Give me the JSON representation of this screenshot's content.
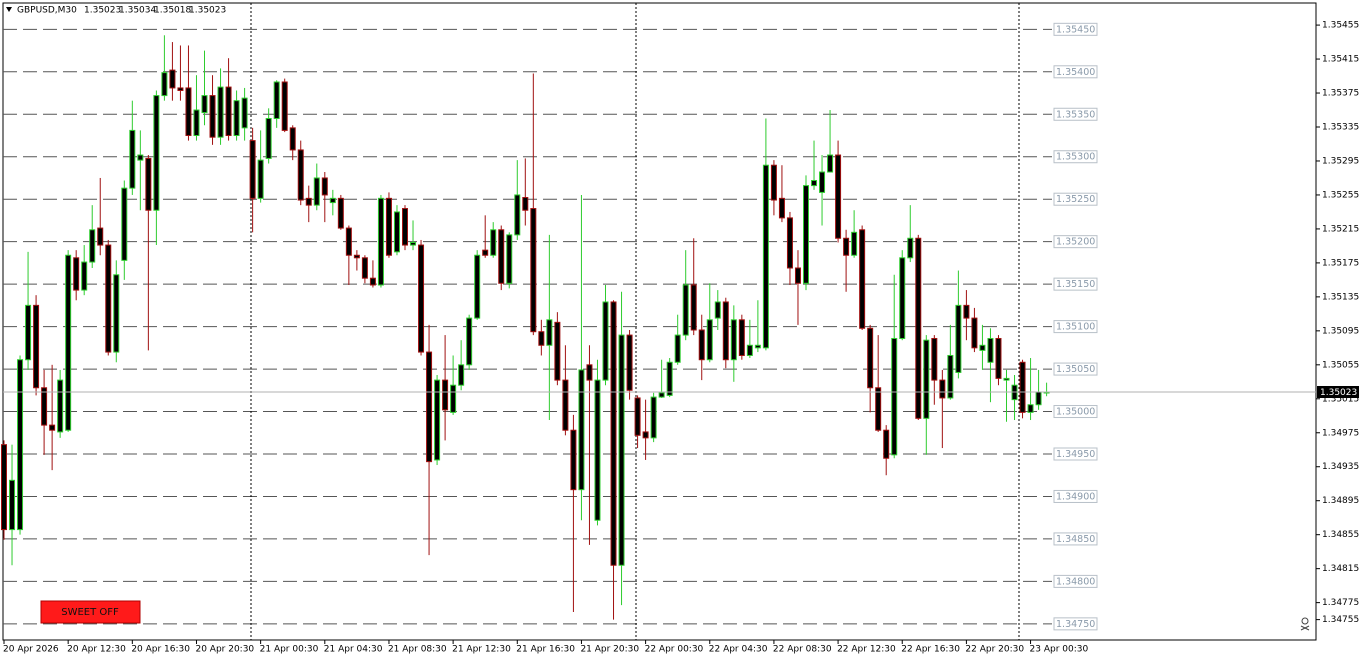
{
  "chart_data": {
    "type": "candlestick",
    "symbol": "GBPUSD,M30",
    "ylim": [
      1.34731,
      1.35481
    ],
    "yticks": [
      1.35455,
      1.35415,
      1.35375,
      1.35335,
      1.35295,
      1.35255,
      1.35215,
      1.35175,
      1.35135,
      1.35095,
      1.35055,
      1.35015,
      1.34975,
      1.34935,
      1.34895,
      1.34855,
      1.34815,
      1.34775,
      1.34755
    ],
    "levels": [
      {
        "value": 1.3545,
        "label": "1.35450"
      },
      {
        "value": 1.354,
        "label": "1.35400"
      },
      {
        "value": 1.3535,
        "label": "1.35350"
      },
      {
        "value": 1.353,
        "label": "1.35300"
      },
      {
        "value": 1.3525,
        "label": "1.35250"
      },
      {
        "value": 1.352,
        "label": "1.35200"
      },
      {
        "value": 1.3515,
        "label": "1.35150"
      },
      {
        "value": 1.351,
        "label": "1.35100"
      },
      {
        "value": 1.3505,
        "label": "1.35050"
      },
      {
        "value": 1.35,
        "label": "1.35000"
      },
      {
        "value": 1.3495,
        "label": "1.34950"
      },
      {
        "value": 1.349,
        "label": "1.34900"
      },
      {
        "value": 1.3485,
        "label": "1.34850"
      },
      {
        "value": 1.348,
        "label": "1.34800"
      },
      {
        "value": 1.3475,
        "label": "1.34750"
      }
    ],
    "bull_color": "#2ecc2e",
    "bear_color": "#a01010",
    "body_color": "#000000",
    "level_color": "#555555",
    "categories": [
      "20 Apr 2026",
      null,
      null,
      null,
      null,
      null,
      null,
      null,
      "20 Apr 12:30",
      null,
      null,
      null,
      null,
      null,
      null,
      null,
      "20 Apr 16:30",
      null,
      null,
      null,
      null,
      null,
      null,
      null,
      "20 Apr 20:30",
      null,
      null,
      null,
      null,
      null,
      null,
      null,
      "21 Apr 00:30",
      null,
      null,
      null,
      null,
      null,
      null,
      null,
      "21 Apr 04:30",
      null,
      null,
      null,
      null,
      null,
      null,
      null,
      "21 Apr 08:30",
      null,
      null,
      null,
      null,
      null,
      null,
      null,
      "21 Apr 12:30",
      null,
      null,
      null,
      null,
      null,
      null,
      null,
      "21 Apr 16:30",
      null,
      null,
      null,
      null,
      null,
      null,
      null,
      "21 Apr 20:30",
      null,
      null,
      null,
      null,
      null,
      null,
      null,
      "22 Apr 00:30",
      null,
      null,
      null,
      null,
      null,
      null,
      null,
      "22 Apr 04:30",
      null,
      null,
      null,
      null,
      null,
      null,
      null,
      "22 Apr 08:30",
      null,
      null,
      null,
      null,
      null,
      null,
      null,
      "22 Apr 12:30",
      null,
      null,
      null,
      null,
      null,
      null,
      null,
      "22 Apr 16:30",
      null,
      null,
      null,
      null,
      null,
      null,
      null,
      "22 Apr 20:30",
      null,
      null,
      null,
      null,
      null,
      null,
      null,
      "23 Apr 00:30",
      null,
      null
    ],
    "open": [
      1.34961,
      1.34861,
      1.34861,
      1.35061,
      1.35125,
      1.35028,
      1.34984,
      1.34976,
      1.34978,
      1.35181,
      1.35143,
      1.35176,
      1.35216,
      1.35196,
      1.3507,
      1.35178,
      1.35263,
      1.35296,
      1.35298,
      1.35237,
      1.35372,
      1.35402,
      1.35381,
      1.35381,
      1.35325,
      1.35352,
      1.35372,
      1.35323,
      1.35382,
      1.35325,
      1.35334,
      1.35319,
      1.35251,
      1.35298,
      1.35345,
      1.35388,
      1.35334,
      1.35308,
      1.35251,
      1.35243,
      1.35275,
      1.35246,
      1.35251,
      1.35216,
      1.35184,
      1.35181,
      1.35157,
      1.35149,
      1.35251,
      1.35188,
      1.35239,
      1.35196,
      1.35196,
      1.3507,
      1.34943,
      1.35037,
      1.34999,
      1.35031,
      1.35055,
      1.3511,
      1.3519,
      1.35184,
      1.35214,
      1.35151,
      1.35208,
      1.35252,
      1.35239,
      1.35094,
      1.35078,
      1.35105,
      1.35037,
      1.34978,
      1.34908,
      1.35055,
      1.34872,
      1.35037,
      1.35129,
      1.34819,
      1.3509,
      1.35016,
      1.34976,
      1.34969,
      1.35017,
      1.35019,
      1.35058,
      1.3509,
      1.35149,
      1.35096,
      1.35061,
      1.3511,
      1.35129,
      1.35061,
      1.35108,
      1.35066,
      1.35075,
      1.35075,
      1.3529,
      1.35251,
      1.35228,
      1.35169,
      1.35151,
      1.35266,
      1.35258,
      1.35282,
      1.35302,
      1.35204,
      1.35184,
      1.35214,
      1.35098,
      1.35028,
      1.34978,
      1.34949,
      1.35086,
      1.35181,
      1.35204,
      1.34992,
      1.35086,
      1.35037,
      1.35016,
      1.35046,
      1.35125,
      1.3511,
      1.35072,
      1.35058,
      1.35086,
      1.35037,
      1.35014,
      1.35058,
      1.34999,
      1.35008,
      1.35023
    ],
    "high": [
      1.34966,
      1.34961,
      1.35066,
      1.35188,
      1.35137,
      1.35049,
      1.35055,
      1.35049,
      1.3519,
      1.3519,
      1.35196,
      1.35243,
      1.35275,
      1.35202,
      1.35178,
      1.35272,
      1.35366,
      1.35331,
      1.35302,
      1.35378,
      1.35443,
      1.35435,
      1.35431,
      1.35431,
      1.35396,
      1.35425,
      1.35396,
      1.35404,
      1.35416,
      1.35378,
      1.35381,
      1.35334,
      1.35331,
      1.35357,
      1.3539,
      1.35392,
      1.35337,
      1.35319,
      1.35266,
      1.35292,
      1.35282,
      1.35261,
      1.35255,
      1.35219,
      1.3519,
      1.35184,
      1.35178,
      1.35255,
      1.35258,
      1.35243,
      1.35243,
      1.35225,
      1.35202,
      1.35102,
      1.35043,
      1.3509,
      1.35066,
      1.35084,
      1.35114,
      1.3519,
      1.35231,
      1.35223,
      1.35219,
      1.35211,
      1.35296,
      1.35298,
      1.35398,
      1.35108,
      1.35208,
      1.35117,
      1.35078,
      1.34996,
      1.35255,
      1.35078,
      1.35061,
      1.35149,
      1.35131,
      1.35141,
      1.35096,
      1.35019,
      1.35014,
      1.35022,
      1.35061,
      1.35063,
      1.35114,
      1.3519,
      1.35204,
      1.35114,
      1.35151,
      1.35143,
      1.35134,
      1.35125,
      1.35114,
      1.35108,
      1.35131,
      1.35345,
      1.35296,
      1.3529,
      1.35235,
      1.3519,
      1.35278,
      1.35319,
      1.35302,
      1.35355,
      1.35319,
      1.35214,
      1.35237,
      1.35219,
      1.35102,
      1.3509,
      1.34984,
      1.35161,
      1.3519,
      1.35243,
      1.35208,
      1.3509,
      1.3509,
      1.35049,
      1.35102,
      1.35166,
      1.35143,
      1.35122,
      1.35102,
      1.35098,
      1.3509,
      1.35049,
      1.35043,
      1.35061,
      1.35063,
      1.35049,
      1.35034
    ],
    "low": [
      1.34849,
      1.34819,
      1.34855,
      1.35049,
      1.35019,
      1.34949,
      1.34931,
      1.34969,
      1.34976,
      1.35131,
      1.35137,
      1.35169,
      1.35184,
      1.35066,
      1.35058,
      1.35155,
      1.35255,
      1.35237,
      1.35072,
      1.35196,
      1.35366,
      1.35366,
      1.35366,
      1.35319,
      1.35319,
      1.35337,
      1.35314,
      1.35314,
      1.35319,
      1.35319,
      1.35319,
      1.35211,
      1.35246,
      1.35292,
      1.35334,
      1.35329,
      1.35296,
      1.35243,
      1.35223,
      1.35237,
      1.35223,
      1.35231,
      1.35214,
      1.35149,
      1.35166,
      1.35151,
      1.35146,
      1.35146,
      1.35181,
      1.35184,
      1.3519,
      1.3519,
      1.35066,
      1.34831,
      1.34937,
      1.34966,
      1.34996,
      1.35025,
      1.35049,
      1.35108,
      1.35181,
      1.35181,
      1.35143,
      1.35145,
      1.35202,
      1.35219,
      1.3509,
      1.35066,
      1.3499,
      1.35031,
      1.34972,
      1.34764,
      1.34872,
      1.34843,
      1.34866,
      1.35031,
      1.34755,
      1.34772,
      1.35014,
      1.34957,
      1.34943,
      1.34964,
      1.35016,
      1.35017,
      1.35055,
      1.35084,
      1.3509,
      1.35037,
      1.35058,
      1.35096,
      1.35051,
      1.35035,
      1.35061,
      1.35063,
      1.3507,
      1.35072,
      1.35231,
      1.35223,
      1.35149,
      1.35102,
      1.35143,
      1.35261,
      1.35219,
      1.35282,
      1.35199,
      1.35141,
      1.35181,
      1.35096,
      1.34999,
      1.34976,
      1.34925,
      1.34945,
      1.35084,
      1.35176,
      1.3499,
      1.34949,
      1.35008,
      1.34957,
      1.35014,
      1.35039,
      1.35084,
      1.3507,
      1.35049,
      1.35011,
      1.35031,
      1.34988,
      1.3499,
      1.34992,
      1.3499,
      1.35002,
      1.35018
    ],
    "close": [
      1.34861,
      1.34919,
      1.35061,
      1.35125,
      1.35028,
      1.34984,
      1.34978,
      1.35037,
      1.35184,
      1.35143,
      1.35176,
      1.35214,
      1.35196,
      1.3507,
      1.35161,
      1.35263,
      1.35331,
      1.35302,
      1.35237,
      1.35372,
      1.35399,
      1.35381,
      1.35378,
      1.35325,
      1.35355,
      1.35372,
      1.35323,
      1.35382,
      1.35325,
      1.35366,
      1.35369,
      1.35251,
      1.35296,
      1.35345,
      1.35388,
      1.35331,
      1.35308,
      1.35249,
      1.35243,
      1.35275,
      1.35255,
      1.35251,
      1.35216,
      1.35184,
      1.35181,
      1.35157,
      1.35149,
      1.35251,
      1.35184,
      1.35235,
      1.35196,
      1.35199,
      1.3507,
      1.34941,
      1.35037,
      1.35002,
      1.35031,
      1.35055,
      1.3511,
      1.35184,
      1.35184,
      1.35214,
      1.35151,
      1.35208,
      1.35255,
      1.35237,
      1.35094,
      1.35078,
      1.35108,
      1.35037,
      1.34978,
      1.34908,
      1.35049,
      1.35037,
      1.35037,
      1.35129,
      1.34819,
      1.3509,
      1.35025,
      1.34972,
      1.34969,
      1.35017,
      1.35022,
      1.35058,
      1.3509,
      1.35149,
      1.35096,
      1.35061,
      1.35108,
      1.35129,
      1.35061,
      1.35108,
      1.35066,
      1.35078,
      1.35078,
      1.3529,
      1.35249,
      1.35228,
      1.35169,
      1.35151,
      1.35266,
      1.35272,
      1.35282,
      1.35302,
      1.35204,
      1.35184,
      1.35211,
      1.35098,
      1.35028,
      1.34978,
      1.34945,
      1.35086,
      1.35181,
      1.35204,
      1.34992,
      1.35084,
      1.35037,
      1.35016,
      1.35066,
      1.35125,
      1.3511,
      1.35075,
      1.35078,
      1.35086,
      1.35039,
      1.35039,
      1.35031,
      1.34999,
      1.35008,
      1.35023,
      1.35023
    ]
  },
  "controls": {
    "sweet_button": "SWEET OFF"
  }
}
